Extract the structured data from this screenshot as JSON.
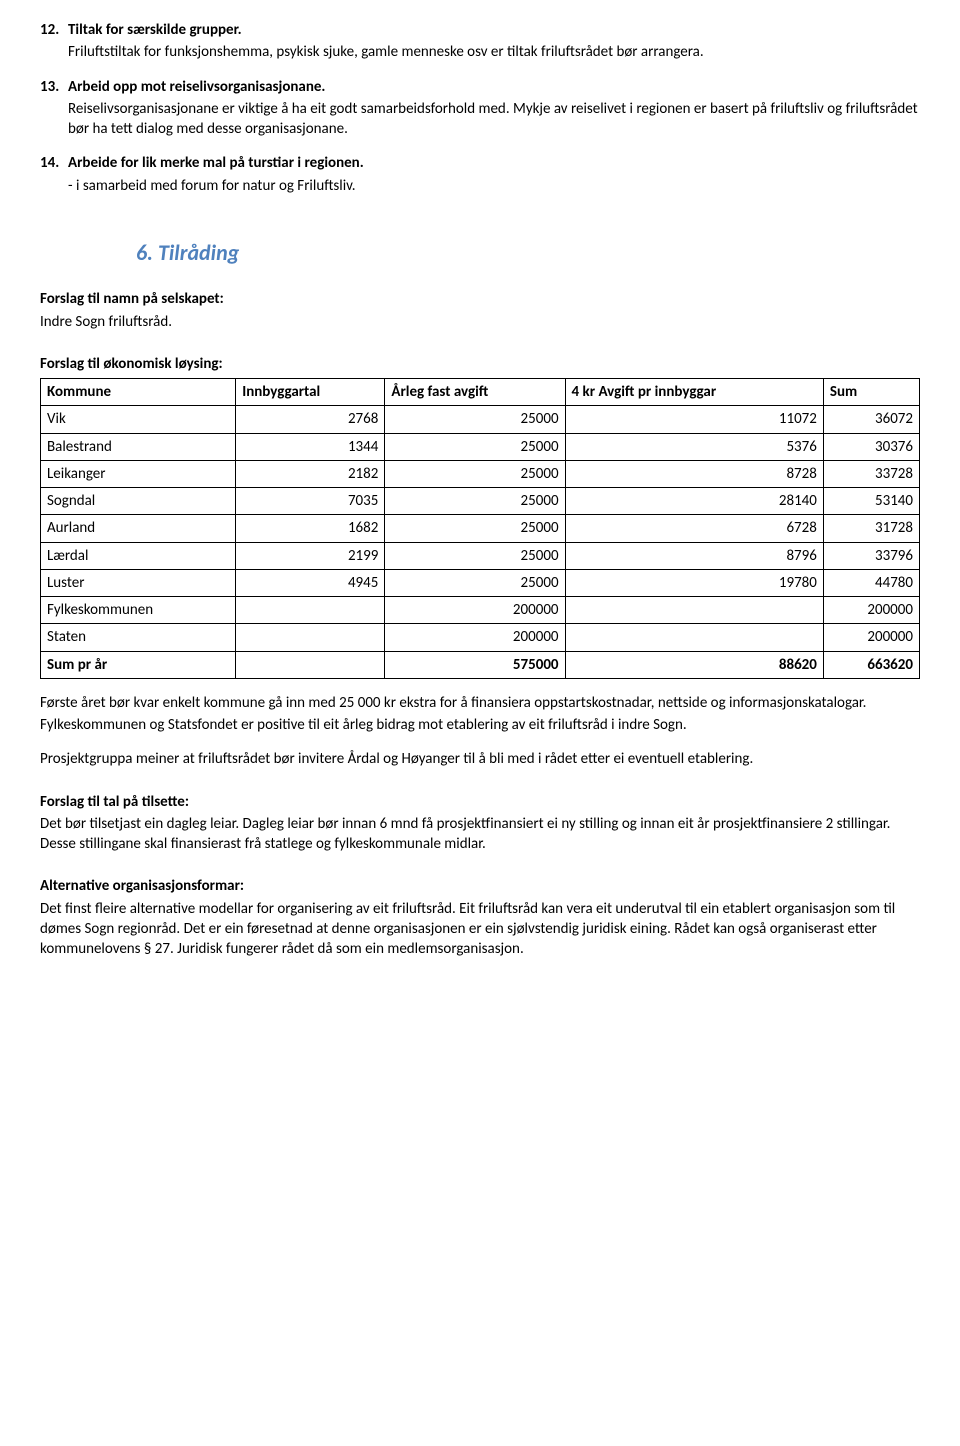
{
  "items": [
    {
      "num": "12.",
      "title": "Tiltak for særskilde grupper.",
      "body": "Friluftstiltak for funksjonshemma, psykisk sjuke, gamle menneske osv er tiltak friluftsrådet bør arrangera."
    },
    {
      "num": "13.",
      "title": "Arbeid opp mot reiselivsorganisasjonane.",
      "body": "Reiselivsorganisasjonane er viktige å ha eit godt samarbeidsforhold med. Mykje av reiselivet i regionen er basert på friluftsliv og friluftsrådet bør ha tett dialog med desse organisasjonane."
    },
    {
      "num": "14.",
      "title": "Arbeide for lik merke mal på turstiar i regionen.",
      "body": "- i samarbeid med forum for natur og Friluftsliv."
    }
  ],
  "heading6": "6. Tilråding",
  "forslagNavn": {
    "title": "Forslag til namn på selskapet:",
    "body": "Indre Sogn friluftsråd."
  },
  "forslagOkonomi": "Forslag til økonomisk løysing:",
  "table": {
    "columns": [
      "Kommune",
      "Innbyggartal",
      "Årleg fast avgift",
      "4 kr Avgift pr innbyggar",
      "Sum"
    ],
    "rows": [
      [
        "Vik",
        "2768",
        "25000",
        "11072",
        "36072"
      ],
      [
        "Balestrand",
        "1344",
        "25000",
        "5376",
        "30376"
      ],
      [
        "Leikanger",
        "2182",
        "25000",
        "8728",
        "33728"
      ],
      [
        "Sogndal",
        "7035",
        "25000",
        "28140",
        "53140"
      ],
      [
        "Aurland",
        "1682",
        "25000",
        "6728",
        "31728"
      ],
      [
        "Lærdal",
        "2199",
        "25000",
        "8796",
        "33796"
      ],
      [
        "Luster",
        "4945",
        "25000",
        "19780",
        "44780"
      ],
      [
        "Fylkeskommunen",
        "",
        "200000",
        "",
        "200000"
      ],
      [
        "Staten",
        "",
        "200000",
        "",
        "200000"
      ]
    ],
    "sumRow": [
      "Sum pr år",
      "",
      "575000",
      "88620",
      "663620"
    ]
  },
  "afterTable1": "Første året bør kvar enkelt kommune gå inn med 25 000 kr ekstra for å finansiera oppstartskostnadar, nettside og informasjonskatalogar.",
  "afterTable2": "Fylkeskommunen og Statsfondet er positive til eit årleg bidrag mot etablering av eit friluftsråd i indre Sogn.",
  "prosjektgruppa": "Prosjektgruppa meiner at friluftsrådet bør invitere Årdal og Høyanger til å bli med i rådet etter ei eventuell etablering.",
  "forslagTal": {
    "title": "Forslag til tal på tilsette:",
    "body": "Det bør tilsetjast ein dagleg leiar. Dagleg leiar bør innan 6 mnd få prosjektfinansiert ei ny stilling og innan eit år prosjektfinansiere 2 stillingar. Desse stillingane skal finansierast frå statlege og fylkeskommunale midlar."
  },
  "altOrg": {
    "title": "Alternative organisasjonsformar:",
    "body": "Det finst fleire alternative modellar for organisering av eit friluftsråd. Eit friluftsråd kan vera eit underutval til ein etablert organisasjon som til dømes Sogn regionråd. Det er ein føresetnad at denne organisasjonen er ein sjølvstendig juridisk eining. Rådet kan også organiserast etter kommunelovens § 27. Juridisk fungerer rådet då som ein medlemsorganisasjon."
  },
  "style": {
    "accent_color": "#4f81bd",
    "text_color": "#000000",
    "background_color": "#ffffff",
    "font_family": "Calibri",
    "body_fontsize": 15,
    "heading_fontsize": 22,
    "table_border_color": "#000000",
    "column_align": [
      "left",
      "right",
      "right",
      "right",
      "right"
    ]
  }
}
